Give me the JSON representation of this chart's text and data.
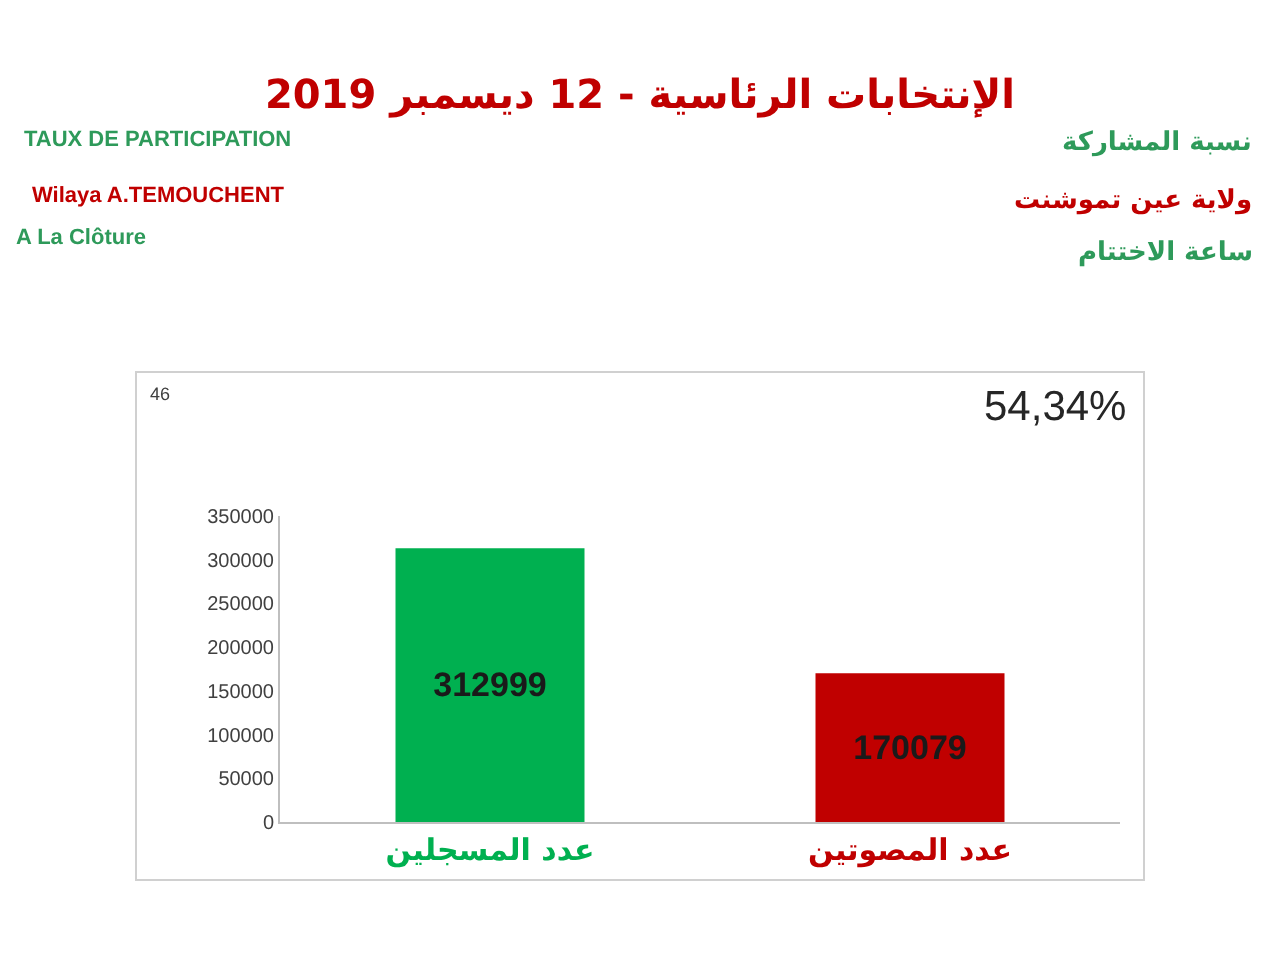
{
  "chart_data": {
    "type": "bar",
    "title": "الإنتخابات الرئاسية - 12 ديسمبر 2019",
    "categories": [
      "عدد المسجلين",
      "عدد المصوتين"
    ],
    "values": [
      312999,
      170079
    ],
    "colors": [
      "#00b050",
      "#c00000"
    ],
    "ylim": [
      0,
      350000
    ],
    "yticks": [
      0,
      50000,
      100000,
      150000,
      200000,
      250000,
      300000,
      350000
    ],
    "data_labels": true,
    "grid": false,
    "annotations": [
      "46",
      "54,34%",
      "TAUX DE PARTICIPATION",
      "Wilaya A.TEMOUCHENT",
      "A La Clôture",
      "نسبة المشاركة",
      "ولاية عين تموشنت",
      "ساعة الاختتام"
    ]
  }
}
